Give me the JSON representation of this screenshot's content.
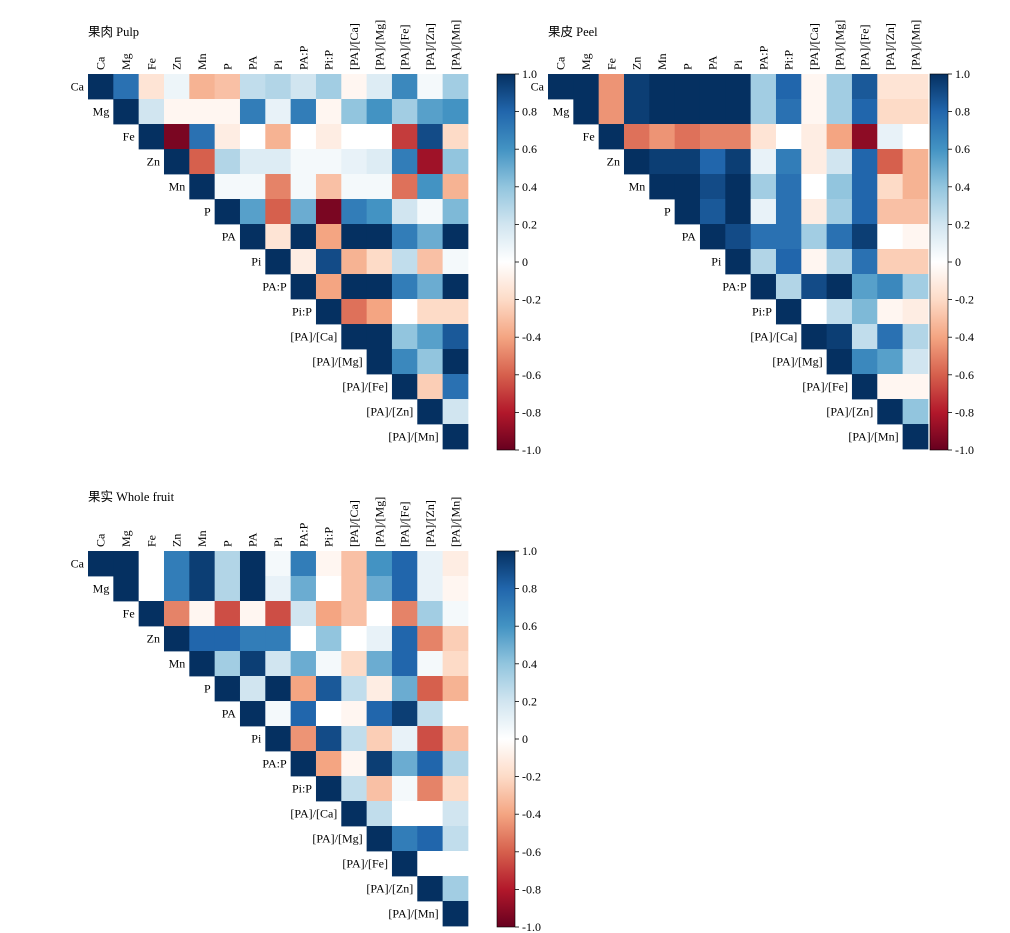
{
  "chart_data": [
    {
      "type": "heatmap",
      "title": "果肉 Pulp",
      "variables": [
        "Ca",
        "Mg",
        "Fe",
        "Zn",
        "Mn",
        "P",
        "PA",
        "Pi",
        "PA:P",
        "Pi:P",
        "[PA]/[Ca]",
        "[PA]/[Mg]",
        "[PA]/[Fe]",
        "[PA]/[Zn]",
        "[PA]/[Mn]"
      ],
      "matrix_upper": [
        [
          1.0,
          0.75,
          -0.15,
          0.08,
          -0.35,
          -0.3,
          0.25,
          0.3,
          0.2,
          0.35,
          -0.05,
          0.15,
          0.65,
          0.05,
          0.35
        ],
        [
          1.0,
          0.2,
          -0.05,
          -0.05,
          -0.05,
          0.7,
          0.1,
          0.7,
          -0.05,
          0.4,
          0.6,
          0.35,
          0.55,
          0.6
        ],
        [
          1.0,
          -0.95,
          0.75,
          -0.1,
          0.0,
          -0.35,
          0.0,
          -0.1,
          0.0,
          0.0,
          -0.7,
          0.9,
          -0.2
        ],
        [
          1.0,
          -0.6,
          0.3,
          0.15,
          0.15,
          0.05,
          0.05,
          0.1,
          0.15,
          0.7,
          -0.85,
          0.4
        ],
        [
          1.0,
          0.05,
          0.05,
          -0.5,
          0.05,
          -0.3,
          0.05,
          0.05,
          -0.55,
          0.6,
          -0.35
        ],
        [
          1.0,
          0.55,
          -0.6,
          0.5,
          -0.95,
          0.7,
          0.6,
          0.2,
          0.05,
          0.45
        ],
        [
          1.0,
          -0.15,
          1.0,
          -0.4,
          1.0,
          1.0,
          0.7,
          0.5,
          1.0
        ],
        [
          1.0,
          -0.1,
          0.9,
          -0.35,
          -0.2,
          0.25,
          -0.3,
          0.05
        ],
        [
          1.0,
          -0.4,
          1.0,
          1.0,
          0.7,
          0.5,
          1.0
        ],
        [
          1.0,
          -0.55,
          -0.4,
          0.0,
          -0.2,
          -0.2
        ],
        [
          1.0,
          1.0,
          0.4,
          0.55,
          0.85
        ],
        [
          1.0,
          0.65,
          0.4,
          1.0
        ],
        [
          1.0,
          -0.25,
          0.75
        ],
        [
          1.0,
          0.2
        ],
        [
          1.0
        ]
      ]
    },
    {
      "type": "heatmap",
      "title": "果皮 Peel",
      "variables": [
        "Ca",
        "Mg",
        "Fe",
        "Zn",
        "Mn",
        "P",
        "PA",
        "Pi",
        "PA:P",
        "Pi:P",
        "[PA]/[Ca]",
        "[PA]/[Mg]",
        "[PA]/[Fe]",
        "[PA]/[Zn]",
        "[PA]/[Mn]"
      ],
      "matrix_upper": [
        [
          1.0,
          1.0,
          -0.45,
          0.95,
          1.0,
          1.0,
          1.0,
          1.0,
          0.35,
          0.8,
          -0.05,
          0.35,
          0.85,
          -0.15,
          -0.15
        ],
        [
          1.0,
          -0.45,
          0.95,
          1.0,
          1.0,
          1.0,
          1.0,
          0.35,
          0.75,
          -0.05,
          0.35,
          0.8,
          -0.2,
          -0.2
        ],
        [
          1.0,
          -0.55,
          -0.45,
          -0.55,
          -0.5,
          -0.5,
          -0.15,
          0.0,
          -0.1,
          -0.4,
          -0.9,
          0.1,
          0.0
        ],
        [
          1.0,
          0.95,
          0.95,
          0.8,
          0.95,
          0.1,
          0.7,
          -0.1,
          0.2,
          0.8,
          -0.6,
          -0.35
        ],
        [
          1.0,
          1.0,
          0.9,
          1.0,
          0.35,
          0.75,
          0.0,
          0.4,
          0.8,
          -0.2,
          -0.35
        ],
        [
          1.0,
          0.85,
          1.0,
          0.1,
          0.75,
          -0.1,
          0.35,
          0.8,
          -0.3,
          -0.3
        ],
        [
          1.0,
          0.9,
          0.75,
          0.75,
          0.35,
          0.75,
          0.95,
          0.0,
          -0.05
        ],
        [
          1.0,
          0.3,
          0.8,
          -0.05,
          0.3,
          0.75,
          -0.25,
          -0.25
        ],
        [
          1.0,
          0.3,
          0.9,
          1.0,
          0.55,
          0.65,
          0.35
        ],
        [
          1.0,
          0.0,
          0.25,
          0.45,
          -0.05,
          -0.1
        ],
        [
          1.0,
          0.95,
          0.25,
          0.75,
          0.3
        ],
        [
          1.0,
          0.65,
          0.55,
          0.2
        ],
        [
          1.0,
          -0.05,
          -0.05
        ],
        [
          1.0,
          0.4
        ],
        [
          1.0
        ]
      ]
    },
    {
      "type": "heatmap",
      "title": "果实 Whole fruit",
      "variables": [
        "Ca",
        "Mg",
        "Fe",
        "Zn",
        "Mn",
        "P",
        "PA",
        "Pi",
        "PA:P",
        "Pi:P",
        "[PA]/[Ca]",
        "[PA]/[Mg]",
        "[PA]/[Fe]",
        "[PA]/[Zn]",
        "[PA]/[Mn]"
      ],
      "matrix_upper": [
        [
          1.0,
          1.0,
          0.0,
          0.7,
          0.95,
          0.3,
          1.0,
          0.05,
          0.7,
          -0.05,
          -0.3,
          0.6,
          0.8,
          0.1,
          -0.1
        ],
        [
          1.0,
          0.0,
          0.7,
          0.95,
          0.3,
          1.0,
          0.1,
          0.5,
          0.0,
          -0.3,
          0.5,
          0.8,
          0.1,
          -0.05
        ],
        [
          1.0,
          -0.5,
          -0.05,
          -0.65,
          -0.05,
          -0.65,
          0.2,
          -0.4,
          -0.3,
          0.0,
          -0.5,
          0.35,
          0.05
        ],
        [
          1.0,
          0.8,
          0.8,
          0.7,
          0.7,
          0.0,
          0.4,
          0.0,
          0.1,
          0.8,
          -0.5,
          -0.25
        ],
        [
          1.0,
          0.35,
          0.95,
          0.2,
          0.5,
          0.05,
          -0.2,
          0.5,
          0.8,
          0.05,
          -0.2
        ],
        [
          1.0,
          0.2,
          1.0,
          -0.4,
          0.85,
          0.25,
          -0.1,
          0.5,
          -0.6,
          -0.35
        ],
        [
          1.0,
          0.05,
          0.8,
          0.0,
          -0.05,
          0.8,
          0.95,
          0.25,
          0.0
        ],
        [
          1.0,
          -0.45,
          0.9,
          0.25,
          -0.25,
          0.1,
          -0.65,
          -0.3
        ],
        [
          1.0,
          -0.4,
          -0.05,
          0.95,
          0.5,
          0.8,
          0.3
        ],
        [
          1.0,
          0.25,
          -0.3,
          0.05,
          -0.5,
          -0.2
        ],
        [
          1.0,
          0.25,
          0.0,
          0.0,
          0.2
        ],
        [
          1.0,
          0.7,
          0.8,
          0.25
        ],
        [
          1.0,
          0.0,
          0.0
        ],
        [
          1.0,
          0.35
        ],
        [
          1.0
        ]
      ]
    }
  ],
  "colorbar": {
    "ticks": [
      "1.0",
      "0.8",
      "0.6",
      "0.4",
      "0.2",
      "0",
      "-0.2",
      "-0.4",
      "-0.6",
      "-0.8",
      "-1.0"
    ],
    "range": [
      -1.0,
      1.0
    ],
    "colors": [
      "#67001f",
      "#b2182b",
      "#d6604d",
      "#f4a582",
      "#fddbc7",
      "#ffffff",
      "#d1e5f0",
      "#92c5de",
      "#4393c3",
      "#2166ac",
      "#053061"
    ]
  }
}
